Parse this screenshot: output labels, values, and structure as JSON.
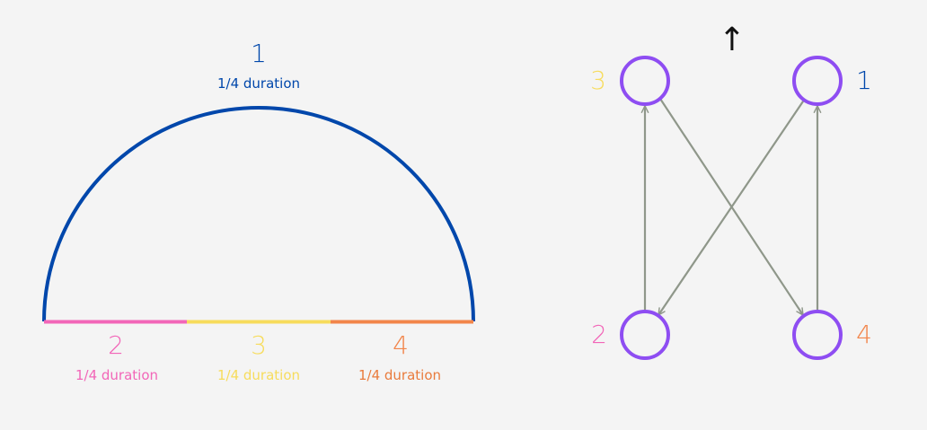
{
  "colors": {
    "blue": "#0047ab",
    "pink": "#f266b8",
    "yellow": "#f7dc5c",
    "orange": "#f2854a",
    "dark_orange": "#e97b3c",
    "node": "#8e4df2",
    "arrow": "#8f978a",
    "background": "#f4f4f4"
  },
  "arc": {
    "top": {
      "number": "1",
      "duration": "1/4 duration"
    },
    "segments": [
      {
        "number": "2",
        "duration": "1/4 duration"
      },
      {
        "number": "3",
        "duration": "1/4 duration"
      },
      {
        "number": "4",
        "duration": "1/4 duration"
      }
    ]
  },
  "graph": {
    "up_arrow": "↑",
    "nodes": [
      {
        "id": "3",
        "label": "3"
      },
      {
        "id": "1",
        "label": "1"
      },
      {
        "id": "2",
        "label": "2"
      },
      {
        "id": "4",
        "label": "4"
      }
    ],
    "edges": [
      {
        "from": "1",
        "to": "2"
      },
      {
        "from": "2",
        "to": "3"
      },
      {
        "from": "3",
        "to": "4"
      },
      {
        "from": "4",
        "to": "1"
      }
    ]
  }
}
